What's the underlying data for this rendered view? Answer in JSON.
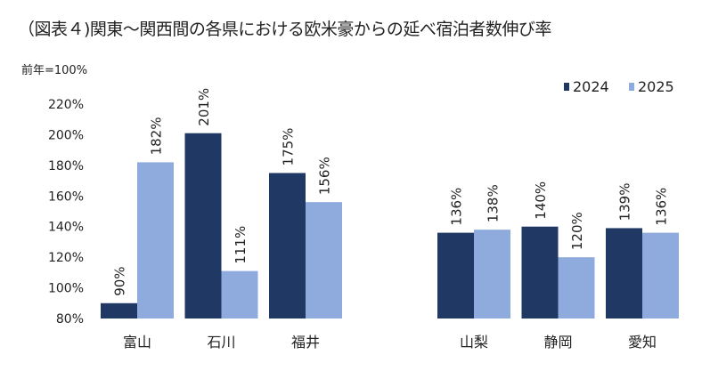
{
  "chart_data": {
    "type": "bar",
    "title": "（図表４)関東～関西間の各県における欧米豪からの延べ宿泊者数伸び率",
    "ylabel": "前年=100%",
    "xlabel": "",
    "ylim": [
      80,
      220
    ],
    "yticks": [
      "80%",
      "100%",
      "120%",
      "140%",
      "160%",
      "180%",
      "200%",
      "220%"
    ],
    "grid": false,
    "legend_position": "top-right",
    "categories": [
      "富山",
      "石川",
      "福井",
      "山梨",
      "静岡",
      "愛知"
    ],
    "series": [
      {
        "name": "2024",
        "color": "#203864",
        "values": [
          90,
          201,
          175,
          136,
          140,
          139
        ],
        "labels": [
          "90%",
          "201%",
          "175%",
          "136%",
          "140%",
          "139%"
        ]
      },
      {
        "name": "2025",
        "color": "#8faadc",
        "values": [
          182,
          111,
          156,
          138,
          120,
          136
        ],
        "labels": [
          "182%",
          "111%",
          "156%",
          "138%",
          "120%",
          "136%"
        ]
      }
    ]
  }
}
